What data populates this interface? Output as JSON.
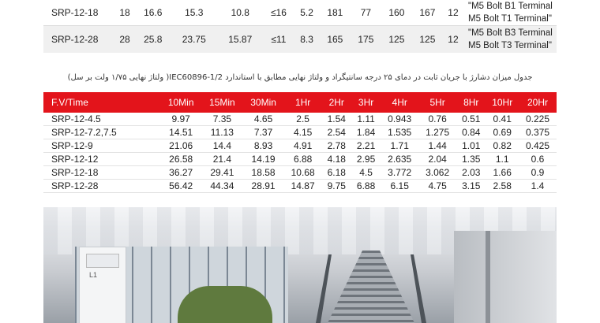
{
  "top_rows": [
    {
      "model": "SRP-12-18",
      "c1": "18",
      "c2": "16.6",
      "c3": "15.3",
      "c4": "10.8",
      "c5": "≤16",
      "c6": "5.2",
      "c7": "181",
      "c8": "77",
      "c9": "160",
      "c10": "167",
      "c11": "12",
      "term1": "\"M5 Bolt B1 Terminal",
      "term2": "M5 Bolt T1 Terminal\""
    },
    {
      "model": "SRP-12-28",
      "c1": "28",
      "c2": "25.8",
      "c3": "23.75",
      "c4": "15.87",
      "c5": "≤11",
      "c6": "8.3",
      "c7": "165",
      "c8": "175",
      "c9": "125",
      "c10": "125",
      "c11": "12",
      "term1": "\"M5 Bolt B3 Terminal",
      "term2": "M5 Bolt T3 Terminal\""
    }
  ],
  "caption": "جدول میزان دشارژ با جریان ثابت در دمای ۲۵ درجه سانتیگراد و ولتاژ نهایی مطابق با استاندارد IEC60896-1/2( ولتاژ نهایی ۱/۷۵ ولت بر سل)",
  "rate_table": {
    "headers": [
      "F.V/Time",
      "10Min",
      "15Min",
      "30Min",
      "1Hr",
      "2Hr",
      "3Hr",
      "4Hr",
      "5Hr",
      "8Hr",
      "10Hr",
      "20Hr"
    ],
    "rows": [
      [
        "SRP-12-4.5",
        "9.97",
        "7.35",
        "4.65",
        "2.5",
        "1.54",
        "1.11",
        "0.943",
        "0.76",
        "0.51",
        "0.41",
        "0.225"
      ],
      [
        "SRP-12-7.2,7.5",
        "14.51",
        "11.13",
        "7.37",
        "4.15",
        "2.54",
        "1.84",
        "1.535",
        "1.275",
        "0.84",
        "0.69",
        "0.375"
      ],
      [
        "SRP-12-9",
        "21.06",
        "14.4",
        "8.93",
        "4.91",
        "2.78",
        "2.21",
        "1.71",
        "1.44",
        "1.01",
        "0.82",
        "0.425"
      ],
      [
        "SRP-12-12",
        "26.58",
        "21.4",
        "14.19",
        "6.88",
        "4.18",
        "2.95",
        "2.635",
        "2.04",
        "1.35",
        "1.1",
        "0.6"
      ],
      [
        "SRP-12-18",
        "36.27",
        "29.41",
        "18.58",
        "10.68",
        "6.18",
        "4.5",
        "3.772",
        "3.062",
        "2.03",
        "1.66",
        "0.9"
      ],
      [
        "SRP-12-28",
        "56.42",
        "44.34",
        "28.91",
        "14.87",
        "9.75",
        "6.88",
        "6.15",
        "4.75",
        "3.15",
        "2.58",
        "1.4"
      ]
    ]
  },
  "photo": {
    "cabinet_label": "L1"
  },
  "colors": {
    "header_red": "#e3141b"
  }
}
